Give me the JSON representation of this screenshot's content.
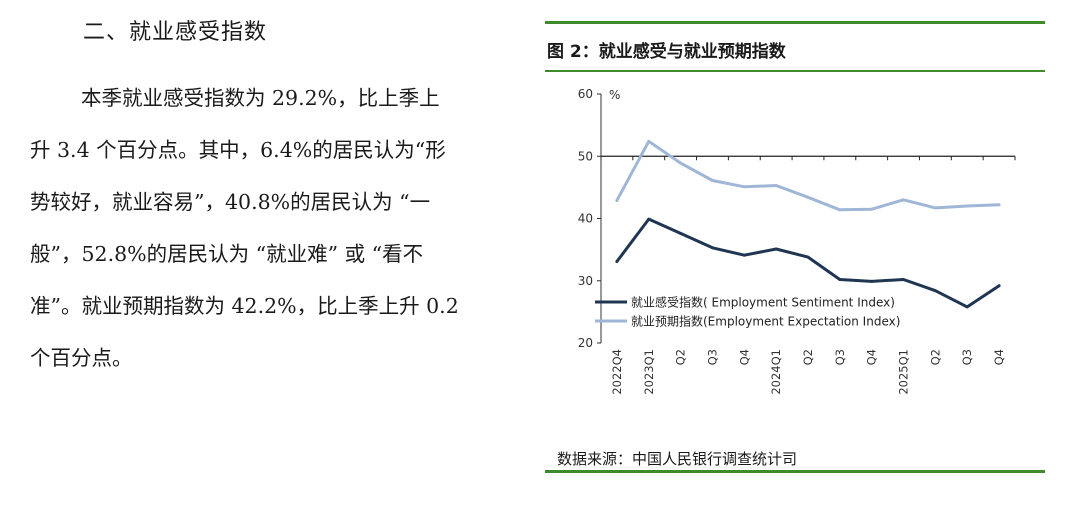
{
  "section": {
    "heading": "二、就业感受指数",
    "paragraph_lines": [
      "本季就业感受指数为 29.2%，比上季上",
      "升 3.4 个百分点。其中，6.4%的居民认为“形",
      "势较好，就业容易”，40.8%的居民认为 “一",
      "般”，52.8%的居民认为 “就业难” 或 “看不",
      "准”。就业预期指数为 42.2%，比上季上升 0.2",
      "个百分点。"
    ]
  },
  "figure": {
    "title": "图 2：就业感受与就业预期指数",
    "source": "数据来源：中国人民银行调查统计司",
    "rule_color": "#3f8a2c"
  },
  "chart_data": {
    "type": "line",
    "title": "",
    "ylabel": "%",
    "ylim": [
      20,
      60
    ],
    "yticks": [
      20,
      30,
      40,
      50,
      60
    ],
    "reference_line": 50,
    "legend_position": "lower-left",
    "grid": false,
    "categories": [
      "2022Q4",
      "2023Q1",
      "Q2",
      "Q3",
      "Q4",
      "2024Q1",
      "Q2",
      "Q3",
      "Q4",
      "2025Q1",
      "Q2",
      "Q3",
      "Q4"
    ],
    "series": [
      {
        "name": "就业感受指数( Employment Sentiment Index)",
        "color": "#1f3552",
        "values": [
          33.1,
          39.9,
          37.6,
          35.3,
          34.1,
          35.1,
          33.8,
          30.2,
          29.9,
          30.2,
          28.4,
          25.8,
          29.2
        ]
      },
      {
        "name": "就业预期指数(Employment Expectation Index)",
        "color": "#9fb6d6",
        "values": [
          42.9,
          52.4,
          48.9,
          46.1,
          45.1,
          45.3,
          43.4,
          41.4,
          41.5,
          43.0,
          41.7,
          42.0,
          42.2
        ]
      }
    ]
  }
}
